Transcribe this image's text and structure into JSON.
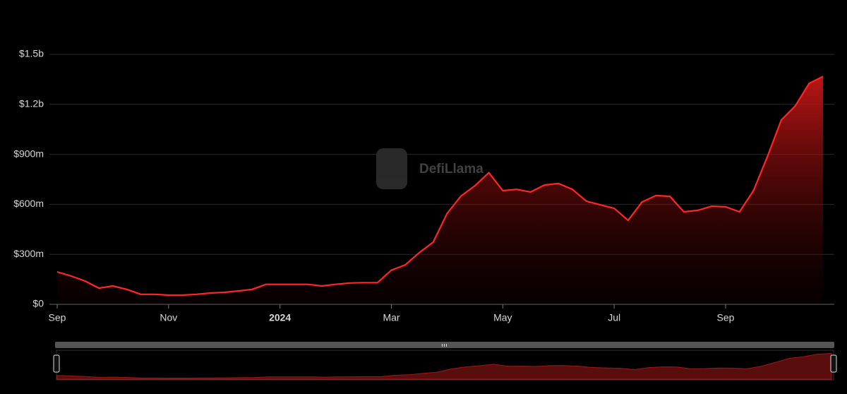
{
  "chart_data": {
    "type": "area",
    "watermark": "DefiLlama",
    "categories": [
      "Sep",
      null,
      null,
      null,
      null,
      null,
      null,
      null,
      "Nov",
      null,
      null,
      null,
      null,
      null,
      null,
      null,
      "2024",
      null,
      null,
      null,
      null,
      null,
      null,
      null,
      "Mar",
      null,
      null,
      null,
      null,
      null,
      null,
      null,
      "May",
      null,
      null,
      null,
      null,
      null,
      null,
      null,
      "Jul",
      null,
      null,
      null,
      null,
      null,
      null,
      null,
      "Sep",
      null,
      null,
      null,
      null,
      null,
      null,
      null
    ],
    "values": [
      195000000,
      170000000,
      140000000,
      97000000,
      110000000,
      90000000,
      60000000,
      60000000,
      55000000,
      55000000,
      60000000,
      68000000,
      72000000,
      80000000,
      90000000,
      120000000,
      120000000,
      120000000,
      120000000,
      110000000,
      120000000,
      128000000,
      130000000,
      130000000,
      205000000,
      237000000,
      310000000,
      373000000,
      545000000,
      650000000,
      712000000,
      790000000,
      682000000,
      690000000,
      674000000,
      716000000,
      725000000,
      690000000,
      619000000,
      597000000,
      576000000,
      504000000,
      614000000,
      653000000,
      648000000,
      555000000,
      564000000,
      589000000,
      585000000,
      555000000,
      682000000,
      886000000,
      1106000000,
      1190000000,
      1326000000,
      1368000000
    ],
    "color": "#ff2626",
    "ylim": [
      0,
      1500000000
    ],
    "yticks": [
      {
        "value": 0,
        "label": "$0"
      },
      {
        "value": 300000000,
        "label": "$300m"
      },
      {
        "value": 600000000,
        "label": "$600m"
      },
      {
        "value": 900000000,
        "label": "$900m"
      },
      {
        "value": 1200000000,
        "label": "$1.2b"
      },
      {
        "value": 1500000000,
        "label": "$1.5b"
      }
    ],
    "grid": true
  }
}
